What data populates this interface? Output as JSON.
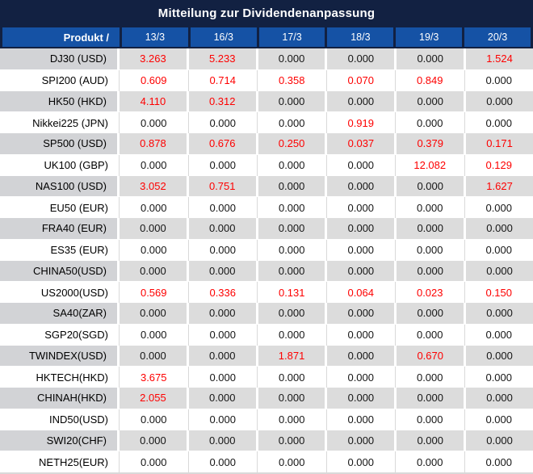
{
  "title": "Mitteilung zur Dividendenanpassung",
  "table": {
    "product_header": "Produkt /",
    "date_headers": [
      "13/3",
      "16/3",
      "17/3",
      "18/3",
      "19/3",
      "20/3"
    ],
    "rows": [
      {
        "product": "DJ30 (USD)",
        "values": [
          "3.263",
          "5.233",
          "0.000",
          "0.000",
          "0.000",
          "1.524"
        ]
      },
      {
        "product": "SPI200 (AUD)",
        "values": [
          "0.609",
          "0.714",
          "0.358",
          "0.070",
          "0.849",
          "0.000"
        ]
      },
      {
        "product": "HK50 (HKD)",
        "values": [
          "4.110",
          "0.312",
          "0.000",
          "0.000",
          "0.000",
          "0.000"
        ]
      },
      {
        "product": "Nikkei225 (JPN)",
        "values": [
          "0.000",
          "0.000",
          "0.000",
          "0.919",
          "0.000",
          "0.000"
        ]
      },
      {
        "product": "SP500 (USD)",
        "values": [
          "0.878",
          "0.676",
          "0.250",
          "0.037",
          "0.379",
          "0.171"
        ]
      },
      {
        "product": "UK100 (GBP)",
        "values": [
          "0.000",
          "0.000",
          "0.000",
          "0.000",
          "12.082",
          "0.129"
        ]
      },
      {
        "product": "NAS100 (USD)",
        "values": [
          "3.052",
          "0.751",
          "0.000",
          "0.000",
          "0.000",
          "1.627"
        ]
      },
      {
        "product": "EU50 (EUR)",
        "values": [
          "0.000",
          "0.000",
          "0.000",
          "0.000",
          "0.000",
          "0.000"
        ]
      },
      {
        "product": "FRA40 (EUR)",
        "values": [
          "0.000",
          "0.000",
          "0.000",
          "0.000",
          "0.000",
          "0.000"
        ]
      },
      {
        "product": "ES35 (EUR)",
        "values": [
          "0.000",
          "0.000",
          "0.000",
          "0.000",
          "0.000",
          "0.000"
        ]
      },
      {
        "product": "CHINA50(USD)",
        "values": [
          "0.000",
          "0.000",
          "0.000",
          "0.000",
          "0.000",
          "0.000"
        ]
      },
      {
        "product": "US2000(USD)",
        "values": [
          "0.569",
          "0.336",
          "0.131",
          "0.064",
          "0.023",
          "0.150"
        ]
      },
      {
        "product": "SA40(ZAR)",
        "values": [
          "0.000",
          "0.000",
          "0.000",
          "0.000",
          "0.000",
          "0.000"
        ]
      },
      {
        "product": "SGP20(SGD)",
        "values": [
          "0.000",
          "0.000",
          "0.000",
          "0.000",
          "0.000",
          "0.000"
        ]
      },
      {
        "product": "TWINDEX(USD)",
        "values": [
          "0.000",
          "0.000",
          "1.871",
          "0.000",
          "0.670",
          "0.000"
        ]
      },
      {
        "product": "HKTECH(HKD)",
        "values": [
          "3.675",
          "0.000",
          "0.000",
          "0.000",
          "0.000",
          "0.000"
        ]
      },
      {
        "product": "CHINAH(HKD)",
        "values": [
          "2.055",
          "0.000",
          "0.000",
          "0.000",
          "0.000",
          "0.000"
        ]
      },
      {
        "product": "IND50(USD)",
        "values": [
          "0.000",
          "0.000",
          "0.000",
          "0.000",
          "0.000",
          "0.000"
        ]
      },
      {
        "product": "SWI20(CHF)",
        "values": [
          "0.000",
          "0.000",
          "0.000",
          "0.000",
          "0.000",
          "0.000"
        ]
      },
      {
        "product": "NETH25(EUR)",
        "values": [
          "0.000",
          "0.000",
          "0.000",
          "0.000",
          "0.000",
          "0.000"
        ]
      }
    ]
  },
  "colors": {
    "title_bg": "#122142",
    "header_bg": "#1552a5",
    "separator_navy": "#122142",
    "gray_row_bg": "#dcdcdc",
    "gray_product_bg": "#d2d3d6",
    "white_row_bg": "#ffffff",
    "light_grid": "#d9d9d9",
    "value_text": "#151515",
    "red_value": "#fe0000",
    "header_text": "#ffffff"
  }
}
